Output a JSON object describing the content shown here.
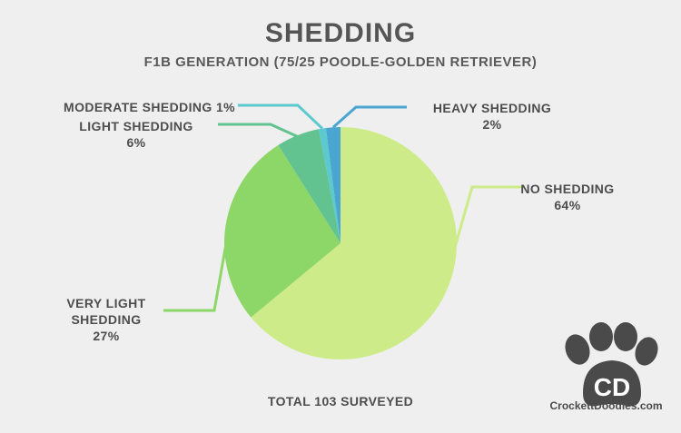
{
  "title": "SHEDDING",
  "subtitle": "F1B GENERATION (75/25 POODLE-GOLDEN RETRIEVER)",
  "total_label": "TOTAL 103 SURVEYED",
  "logo": {
    "initials": "CD",
    "site": "CrockettDoodles.com",
    "icon": "paw-print-icon"
  },
  "chart_data": {
    "type": "pie",
    "title": "SHEDDING",
    "subtitle": "F1B GENERATION (75/25 POODLE-GOLDEN RETRIEVER)",
    "total": "TOTAL 103 SURVEYED",
    "slices": [
      {
        "label": "NO SHEDDING",
        "value": 64,
        "percent_label": "64%",
        "color": "#cdec89"
      },
      {
        "label": "VERY LIGHT SHEDDING",
        "value": 27,
        "percent_label": "27%",
        "color": "#8dd668"
      },
      {
        "label": "LIGHT SHEDDING",
        "value": 6,
        "percent_label": "6%",
        "color": "#62c391"
      },
      {
        "label": "MODERATE SHEDDING",
        "value": 1,
        "percent_label": "1%",
        "color": "#5cc9cf"
      },
      {
        "label": "HEAVY SHEDDING",
        "value": 2,
        "percent_label": "2%",
        "color": "#4aa6d1"
      }
    ],
    "start_angle_deg": 0,
    "direction": "clockwise",
    "legend": "none"
  },
  "labels": {
    "no_shedding": {
      "line1": "NO SHEDDING",
      "line2": "64%"
    },
    "very_light": {
      "line1": "VERY LIGHT",
      "line2": "SHEDDING",
      "line3": "27%"
    },
    "light": {
      "line1": "LIGHT SHEDDING",
      "line2": "6%"
    },
    "moderate": {
      "line1": "MODERATE SHEDDING 1%"
    },
    "heavy": {
      "line1": "HEAVY SHEDDING",
      "line2": "2%"
    }
  }
}
